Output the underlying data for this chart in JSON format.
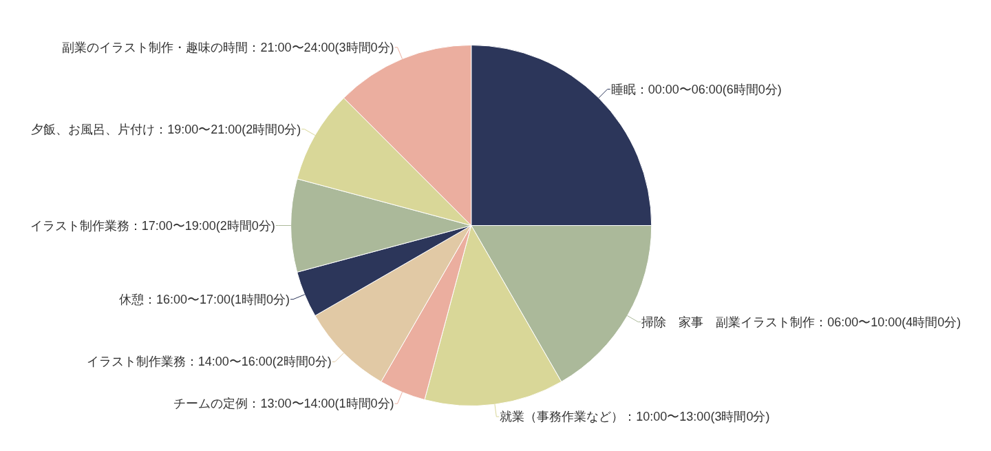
{
  "chart_data": {
    "type": "pie",
    "categories": [
      "睡眠：00:00〜06:00(6時間0分)",
      "掃除　家事　副業イラスト制作：06:00〜10:00(4時間0分)",
      "就業（事務作業など）：10:00〜13:00(3時間0分)",
      "チームの定例：13:00〜14:00(1時間0分)",
      "イラスト制作業務：14:00〜16:00(2時間0分)",
      "休憩：16:00〜17:00(1時間0分)",
      "イラスト制作業務：17:00〜19:00(2時間0分)",
      "夕飯、お風呂、片付け：19:00〜21:00(2時間0分)",
      "副業のイラスト制作・趣味の時間：21:00〜24:00(3時間0分)"
    ],
    "values": [
      6,
      4,
      3,
      1,
      2,
      1,
      2,
      2,
      3
    ],
    "colors": [
      "#2c365a",
      "#abb99a",
      "#d9d798",
      "#ebae9f",
      "#e1c9a5",
      "#2c365a",
      "#abb99a",
      "#d9d798",
      "#ebae9f"
    ]
  }
}
